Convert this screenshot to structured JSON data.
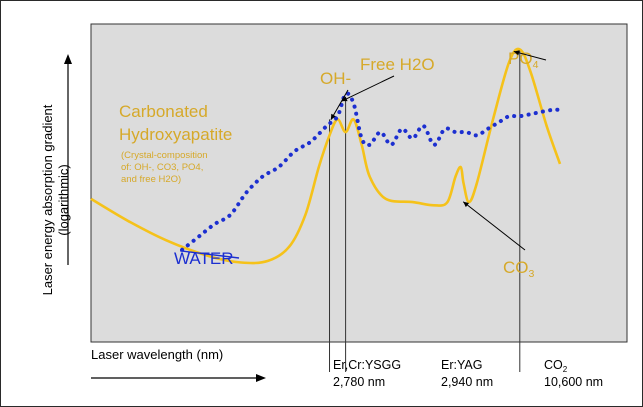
{
  "chart_data": {
    "type": "line",
    "title": "",
    "xlabel": "Laser wavelength (nm)",
    "ylabel_line1": "Laser energy absorption gradient",
    "ylabel_line2": "(logarithmic)",
    "colors": {
      "plot_bg": "#dcdcdc",
      "hydroxyapatite": "#f5c21a",
      "water": "#1c2fd0",
      "hydroxyapatite_text": "#d6a92a",
      "water_text": "#1c2fd0",
      "axis_text": "#000000"
    },
    "series": [
      {
        "name": "Carbonated Hydroxyapatite",
        "subtitle": [
          "(Crystal-composition",
          "of: OH-, CO3, PO4,",
          "and free H2O)"
        ],
        "style": "solid",
        "points": [
          [
            0.0,
            0.45
          ],
          [
            0.07,
            0.38
          ],
          [
            0.14,
            0.32
          ],
          [
            0.22,
            0.27
          ],
          [
            0.28,
            0.25
          ],
          [
            0.33,
            0.255
          ],
          [
            0.37,
            0.3
          ],
          [
            0.4,
            0.4
          ],
          [
            0.425,
            0.55
          ],
          [
            0.445,
            0.65
          ],
          [
            0.46,
            0.7
          ],
          [
            0.475,
            0.66
          ],
          [
            0.49,
            0.7
          ],
          [
            0.505,
            0.62
          ],
          [
            0.52,
            0.52
          ],
          [
            0.55,
            0.45
          ],
          [
            0.6,
            0.44
          ],
          [
            0.64,
            0.43
          ],
          [
            0.665,
            0.44
          ],
          [
            0.68,
            0.52
          ],
          [
            0.69,
            0.55
          ],
          [
            0.695,
            0.5
          ],
          [
            0.705,
            0.44
          ],
          [
            0.72,
            0.5
          ],
          [
            0.75,
            0.7
          ],
          [
            0.78,
            0.88
          ],
          [
            0.8,
            0.92
          ],
          [
            0.82,
            0.85
          ],
          [
            0.85,
            0.68
          ],
          [
            0.875,
            0.56
          ]
        ]
      },
      {
        "name": "WATER",
        "style": "dotted",
        "points": [
          [
            0.17,
            0.29
          ],
          [
            0.2,
            0.33
          ],
          [
            0.23,
            0.37
          ],
          [
            0.26,
            0.4
          ],
          [
            0.29,
            0.47
          ],
          [
            0.32,
            0.52
          ],
          [
            0.35,
            0.55
          ],
          [
            0.38,
            0.6
          ],
          [
            0.41,
            0.63
          ],
          [
            0.44,
            0.68
          ],
          [
            0.46,
            0.71
          ],
          [
            0.475,
            0.78
          ],
          [
            0.49,
            0.75
          ],
          [
            0.505,
            0.64
          ],
          [
            0.52,
            0.62
          ],
          [
            0.54,
            0.66
          ],
          [
            0.56,
            0.62
          ],
          [
            0.58,
            0.67
          ],
          [
            0.6,
            0.64
          ],
          [
            0.62,
            0.68
          ],
          [
            0.64,
            0.62
          ],
          [
            0.66,
            0.67
          ],
          [
            0.68,
            0.66
          ],
          [
            0.7,
            0.66
          ],
          [
            0.72,
            0.65
          ],
          [
            0.74,
            0.67
          ],
          [
            0.76,
            0.69
          ],
          [
            0.78,
            0.71
          ],
          [
            0.8,
            0.71
          ],
          [
            0.83,
            0.72
          ],
          [
            0.86,
            0.73
          ],
          [
            0.875,
            0.73
          ]
        ]
      }
    ],
    "annotations": [
      {
        "text": "OH-",
        "points_to": [
          0.455,
          0.68
        ]
      },
      {
        "text": "Free H2O",
        "points_to": [
          0.475,
          0.77
        ]
      },
      {
        "text": "PO",
        "sub": "4",
        "points_to": [
          0.8,
          0.92
        ]
      },
      {
        "text": "CO",
        "sub": "3",
        "points_to": [
          0.7,
          0.46
        ]
      },
      {
        "text": "WATER",
        "points_to": [
          0.17,
          0.29
        ]
      }
    ],
    "wavelength_markers": [
      {
        "line1": "Er,Cr:YSGG",
        "line2": "2,780 nm",
        "x": 0.445
      },
      {
        "line1": "Er:YAG",
        "line2": "2,940 nm",
        "x": 0.475
      },
      {
        "line1": "CO",
        "line1_sub": "2",
        "line2": "10,600 nm",
        "x": 0.8
      }
    ],
    "grid": false
  }
}
